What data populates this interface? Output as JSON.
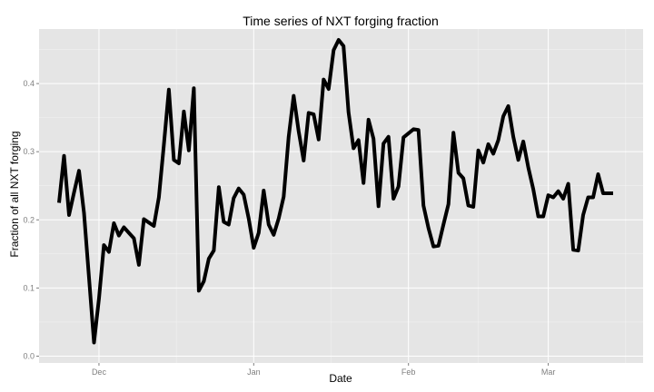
{
  "chart_data": {
    "type": "line",
    "title": "Time series of NXT forging fraction",
    "xlabel": "Date",
    "ylabel": "Fraction of all NXT forging",
    "x_tick_labels": [
      {
        "date": "2014-12-01",
        "label": "Dec"
      },
      {
        "date": "2015-01-01",
        "label": "Jan"
      },
      {
        "date": "2015-02-01",
        "label": "Feb"
      },
      {
        "date": "2015-03-01",
        "label": "Mar"
      }
    ],
    "y_ticks": [
      0.0,
      0.1,
      0.2,
      0.3,
      0.4
    ],
    "y_tick_labels": [
      "0.0",
      "0.1",
      "0.2",
      "0.3",
      "0.4"
    ],
    "xlim": [
      "2014-11-19",
      "2015-03-20"
    ],
    "ylim": [
      -0.01,
      0.48
    ],
    "grid": true,
    "series": [
      {
        "name": "",
        "color": "#000000",
        "x": [
          "2014-11-23",
          "2014-11-24",
          "2014-11-25",
          "2014-11-26",
          "2014-11-27",
          "2014-11-28",
          "2014-11-29",
          "2014-11-30",
          "2014-12-01",
          "2014-12-02",
          "2014-12-03",
          "2014-12-04",
          "2014-12-05",
          "2014-12-06",
          "2014-12-07",
          "2014-12-08",
          "2014-12-09",
          "2014-12-10",
          "2014-12-11",
          "2014-12-12",
          "2014-12-13",
          "2014-12-14",
          "2014-12-15",
          "2014-12-16",
          "2014-12-17",
          "2014-12-18",
          "2014-12-19",
          "2014-12-20",
          "2014-12-21",
          "2014-12-22",
          "2014-12-23",
          "2014-12-24",
          "2014-12-25",
          "2014-12-26",
          "2014-12-27",
          "2014-12-28",
          "2014-12-29",
          "2014-12-30",
          "2014-12-31",
          "2015-01-01",
          "2015-01-02",
          "2015-01-03",
          "2015-01-04",
          "2015-01-05",
          "2015-01-06",
          "2015-01-07",
          "2015-01-08",
          "2015-01-09",
          "2015-01-10",
          "2015-01-11",
          "2015-01-12",
          "2015-01-13",
          "2015-01-14",
          "2015-01-15",
          "2015-01-16",
          "2015-01-17",
          "2015-01-18",
          "2015-01-19",
          "2015-01-20",
          "2015-01-21",
          "2015-01-22",
          "2015-01-23",
          "2015-01-24",
          "2015-01-25",
          "2015-01-26",
          "2015-01-27",
          "2015-01-28",
          "2015-01-29",
          "2015-01-30",
          "2015-01-31",
          "2015-02-01",
          "2015-02-02",
          "2015-02-03",
          "2015-02-04",
          "2015-02-05",
          "2015-02-06",
          "2015-02-07",
          "2015-02-08",
          "2015-02-09",
          "2015-02-10",
          "2015-02-11",
          "2015-02-12",
          "2015-02-13",
          "2015-02-14",
          "2015-02-15",
          "2015-02-16",
          "2015-02-17",
          "2015-02-18",
          "2015-02-19",
          "2015-02-20",
          "2015-02-21",
          "2015-02-22",
          "2015-02-23",
          "2015-02-24",
          "2015-02-25",
          "2015-02-26",
          "2015-02-27",
          "2015-02-28",
          "2015-03-01",
          "2015-03-02",
          "2015-03-03",
          "2015-03-04",
          "2015-03-05",
          "2015-03-06",
          "2015-03-07",
          "2015-03-08",
          "2015-03-09",
          "2015-03-10",
          "2015-03-11",
          "2015-03-12",
          "2015-03-13",
          "2015-03-14"
        ],
        "y": [
          0.225,
          0.294,
          0.207,
          0.24,
          0.272,
          0.21,
          0.115,
          0.02,
          0.085,
          0.163,
          0.153,
          0.195,
          0.177,
          0.189,
          0.181,
          0.173,
          0.134,
          0.201,
          0.196,
          0.191,
          0.233,
          0.31,
          0.391,
          0.288,
          0.283,
          0.359,
          0.302,
          0.393,
          0.096,
          0.11,
          0.143,
          0.155,
          0.248,
          0.197,
          0.193,
          0.232,
          0.246,
          0.237,
          0.202,
          0.159,
          0.181,
          0.243,
          0.193,
          0.178,
          0.202,
          0.234,
          0.322,
          0.382,
          0.33,
          0.287,
          0.357,
          0.355,
          0.318,
          0.406,
          0.392,
          0.449,
          0.464,
          0.455,
          0.358,
          0.305,
          0.317,
          0.254,
          0.347,
          0.319,
          0.22,
          0.312,
          0.322,
          0.231,
          0.249,
          0.321,
          0.327,
          0.333,
          0.332,
          0.221,
          0.188,
          0.161,
          0.162,
          0.193,
          0.223,
          0.328,
          0.269,
          0.261,
          0.221,
          0.219,
          0.302,
          0.284,
          0.311,
          0.297,
          0.317,
          0.352,
          0.367,
          0.322,
          0.288,
          0.315,
          0.277,
          0.245,
          0.205,
          0.205,
          0.236,
          0.233,
          0.242,
          0.231,
          0.253,
          0.156,
          0.155,
          0.207,
          0.233,
          0.233,
          0.267,
          0.239,
          0.239,
          0.239
        ]
      }
    ]
  }
}
